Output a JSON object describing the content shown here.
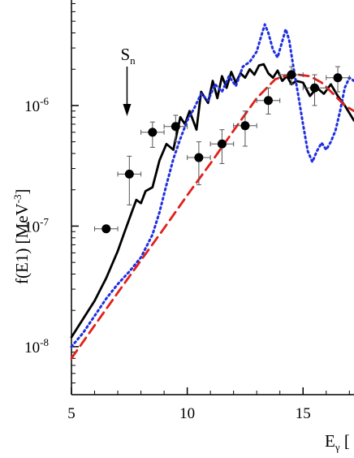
{
  "chart_data": {
    "type": "scatter",
    "xlabel": {
      "main": "E",
      "sub": "γ",
      "tail": " ["
    },
    "ylabel": {
      "main": "f(E1) [MeV",
      "sup": "-3",
      "tail": "]"
    },
    "x_ticks": [
      {
        "value": 5,
        "label": "5"
      },
      {
        "value": 10,
        "label": "10"
      },
      {
        "value": 15,
        "label": "15"
      }
    ],
    "y_ticks": [
      {
        "value": 1e-08,
        "base": "10",
        "exp": "-8"
      },
      {
        "value": 1e-07,
        "base": "10",
        "exp": "-7"
      },
      {
        "value": 1e-06,
        "base": "10",
        "exp": "-6"
      }
    ],
    "y_scale": "log",
    "xlim": [
      5,
      17.2
    ],
    "ylim": [
      4e-09,
      7.5e-06
    ],
    "annotation": {
      "label": "S",
      "sub": "n",
      "x": 7.4
    },
    "experimental_points": [
      {
        "x": 6.5,
        "y": 9.5e-08,
        "xerr": 0.5,
        "ylo": 9.5e-08,
        "yhi": 9.5e-08
      },
      {
        "x": 7.5,
        "y": 2.7e-07,
        "xerr": 0.5,
        "ylo": 1.5e-07,
        "yhi": 3.8e-07
      },
      {
        "x": 8.5,
        "y": 6e-07,
        "xerr": 0.5,
        "ylo": 4.5e-07,
        "yhi": 7.3e-07
      },
      {
        "x": 9.5,
        "y": 6.7e-07,
        "xerr": 0.5,
        "ylo": 5e-07,
        "yhi": 8.3e-07
      },
      {
        "x": 10.5,
        "y": 3.7e-07,
        "xerr": 0.5,
        "ylo": 2.2e-07,
        "yhi": 5e-07
      },
      {
        "x": 11.5,
        "y": 4.8e-07,
        "xerr": 0.5,
        "ylo": 3.3e-07,
        "yhi": 6.3e-07
      },
      {
        "x": 12.5,
        "y": 6.8e-07,
        "xerr": 0.5,
        "ylo": 4.6e-07,
        "yhi": 9e-07
      },
      {
        "x": 13.5,
        "y": 1.1e-06,
        "xerr": 0.5,
        "ylo": 8.5e-07,
        "yhi": 1.4e-06
      },
      {
        "x": 14.5,
        "y": 1.8e-06,
        "xerr": 0.5,
        "ylo": 1.5e-06,
        "yhi": 2.1e-06
      },
      {
        "x": 15.5,
        "y": 1.4e-06,
        "xerr": 0.5,
        "ylo": 1e-06,
        "yhi": 1.8e-06
      },
      {
        "x": 16.5,
        "y": 1.7e-06,
        "xerr": 0.5,
        "ylo": 1.3e-06,
        "yhi": 2.1e-06
      }
    ],
    "series": [
      {
        "style": "solid",
        "color": "#000000",
        "x": [
          5.0,
          5.5,
          6.0,
          6.5,
          7.0,
          7.3,
          7.6,
          7.8,
          8.0,
          8.2,
          8.5,
          8.8,
          9.1,
          9.4,
          9.7,
          9.9,
          10.1,
          10.4,
          10.6,
          10.9,
          11.1,
          11.3,
          11.5,
          11.7,
          11.9,
          12.1,
          12.3,
          12.5,
          12.7,
          12.9,
          13.1,
          13.3,
          13.5,
          13.7,
          13.9,
          14.1,
          14.3,
          14.5,
          14.7,
          15.0,
          15.3,
          15.6,
          15.9,
          16.2,
          16.5,
          16.8,
          17.2
        ],
        "y": [
          1.2e-08,
          1.7e-08,
          2.4e-08,
          3.7e-08,
          6.2e-08,
          9e-08,
          1.3e-07,
          1.65e-07,
          1.55e-07,
          1.95e-07,
          2.1e-07,
          3.5e-07,
          4.8e-07,
          4.3e-07,
          8e-07,
          7e-07,
          9e-07,
          6.3e-07,
          1.3e-06,
          1.05e-06,
          1.6e-06,
          1.15e-06,
          1.75e-06,
          1.4e-06,
          1.9e-06,
          1.55e-06,
          1.85e-06,
          1.7e-06,
          2e-06,
          1.8e-06,
          2.15e-06,
          2.2e-06,
          1.85e-06,
          1.7e-06,
          1.95e-06,
          1.6e-06,
          1.75e-06,
          1.5e-06,
          1.6e-06,
          1.55e-06,
          1.2e-06,
          1.4e-06,
          1.25e-06,
          1.5e-06,
          1.2e-06,
          1e-06,
          7.5e-07
        ]
      },
      {
        "style": "dotted",
        "color": "#1f2fe0",
        "x": [
          5.0,
          5.5,
          6.0,
          6.5,
          7.0,
          7.5,
          8.0,
          8.5,
          8.8,
          9.1,
          9.4,
          9.7,
          10.0,
          10.3,
          10.6,
          10.9,
          11.2,
          11.5,
          11.8,
          12.1,
          12.4,
          12.7,
          13.0,
          13.2,
          13.35,
          13.5,
          13.7,
          13.9,
          14.1,
          14.25,
          14.4,
          14.6,
          14.8,
          15.0,
          15.2,
          15.4,
          15.6,
          15.8,
          16.0,
          16.2,
          16.4,
          16.6,
          16.8,
          17.0,
          17.2
        ],
        "y": [
          1e-08,
          1.3e-08,
          1.8e-08,
          2.5e-08,
          3.3e-08,
          4.2e-08,
          5.5e-08,
          8.5e-08,
          1.3e-07,
          2.2e-07,
          3.6e-07,
          5.3e-07,
          7.5e-07,
          9.5e-07,
          1.25e-06,
          1.1e-06,
          1.5e-06,
          1.3e-06,
          1.75e-06,
          1.45e-06,
          2.1e-06,
          2.3e-06,
          2.8e-06,
          3.8e-06,
          4.7e-06,
          4e-06,
          2.9e-06,
          2.5e-06,
          3.4e-06,
          4.3e-06,
          3.5e-06,
          2e-06,
          1.2e-06,
          7e-07,
          4.2e-07,
          3.4e-07,
          4.2e-07,
          4.9e-07,
          4.3e-07,
          5e-07,
          6.2e-07,
          9e-07,
          1.4e-06,
          1.7e-06,
          1.6e-06
        ]
      },
      {
        "style": "dashed",
        "color": "#e0201b",
        "x": [
          5.0,
          6.0,
          7.0,
          8.0,
          9.0,
          10.0,
          11.0,
          12.0,
          13.0,
          13.8,
          14.3,
          14.8,
          15.3,
          15.8,
          16.3,
          16.8,
          17.2
        ],
        "y": [
          8e-09,
          1.5e-08,
          2.8e-08,
          5.2e-08,
          9.6e-08,
          1.8e-07,
          3.3e-07,
          6.2e-07,
          1.15e-06,
          1.65e-06,
          1.78e-06,
          1.8e-06,
          1.75e-06,
          1.55e-06,
          1.25e-06,
          1e-06,
          9e-07
        ]
      }
    ]
  }
}
